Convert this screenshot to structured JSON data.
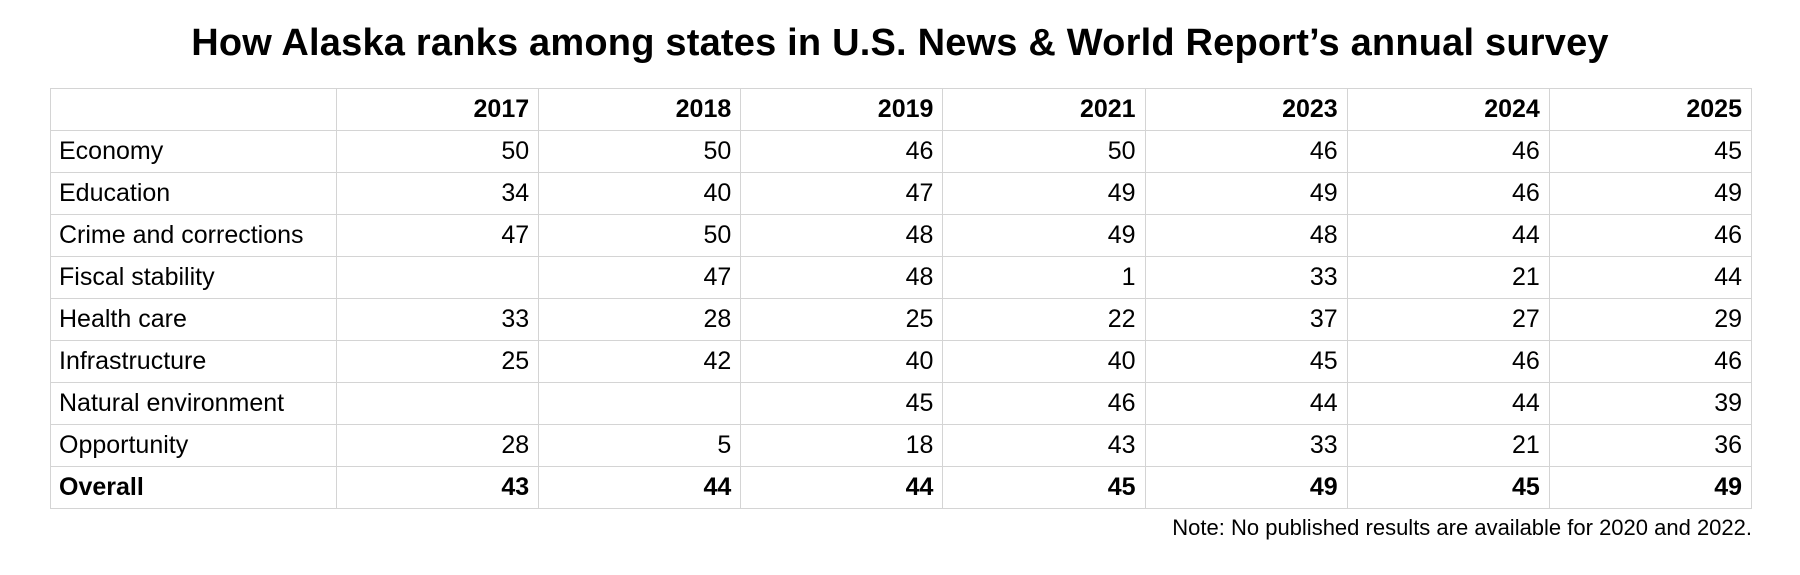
{
  "title": "How Alaska ranks among states in U.S. News & World Report’s annual survey",
  "note": "Note: No published results are available for 2020 and 2022.",
  "colors": {
    "text": "#000000",
    "gridline": "#d4d4d4",
    "background": "#ffffff"
  },
  "chart_data": {
    "type": "table",
    "title": "How Alaska ranks among states in U.S. News & World Report’s annual survey",
    "columns": [
      "",
      "2017",
      "2018",
      "2019",
      "2021",
      "2023",
      "2024",
      "2025"
    ],
    "rows": [
      {
        "label": "Economy",
        "values": [
          "50",
          "50",
          "46",
          "50",
          "46",
          "46",
          "45"
        ],
        "bold": false
      },
      {
        "label": "Education",
        "values": [
          "34",
          "40",
          "47",
          "49",
          "49",
          "46",
          "49"
        ],
        "bold": false
      },
      {
        "label": "Crime and corrections",
        "values": [
          "47",
          "50",
          "48",
          "49",
          "48",
          "44",
          "46"
        ],
        "bold": false
      },
      {
        "label": "Fiscal stability",
        "values": [
          "",
          "47",
          "48",
          "1",
          "33",
          "21",
          "44"
        ],
        "bold": false
      },
      {
        "label": "Health care",
        "values": [
          "33",
          "28",
          "25",
          "22",
          "37",
          "27",
          "29"
        ],
        "bold": false
      },
      {
        "label": "Infrastructure",
        "values": [
          "25",
          "42",
          "40",
          "40",
          "45",
          "46",
          "46"
        ],
        "bold": false
      },
      {
        "label": "Natural environment",
        "values": [
          "",
          "",
          "45",
          "46",
          "44",
          "44",
          "39"
        ],
        "bold": false
      },
      {
        "label": "Opportunity",
        "values": [
          "28",
          "5",
          "18",
          "43",
          "33",
          "21",
          "36"
        ],
        "bold": false
      },
      {
        "label": "Overall",
        "values": [
          "43",
          "44",
          "44",
          "45",
          "49",
          "45",
          "49"
        ],
        "bold": true
      }
    ],
    "notes": "No published results are available for 2020 and 2022."
  }
}
